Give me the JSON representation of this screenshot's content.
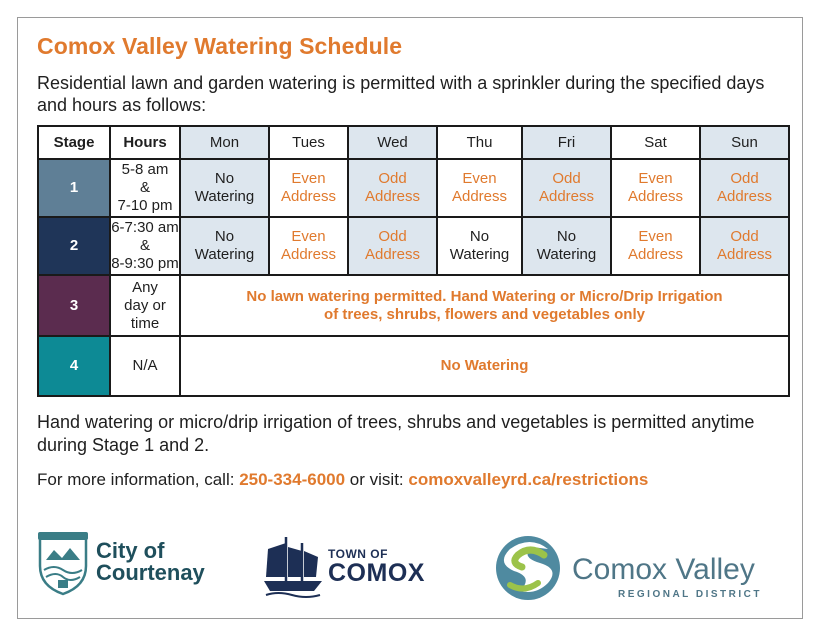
{
  "title": "Comox Valley Watering Schedule",
  "intro": "Residential lawn and garden watering is permitted with a sprinkler during the specified days and hours as follows:",
  "table": {
    "header": {
      "stage": "Stage",
      "hours": "Hours",
      "days": [
        "Mon",
        "Tues",
        "Wed",
        "Thu",
        "Fri",
        "Sat",
        "Sun"
      ]
    },
    "rows": [
      {
        "stage": "1",
        "hours": [
          "5-8 am",
          "&",
          "7-10 pm"
        ],
        "cells": [
          [
            "No",
            "Watering"
          ],
          [
            "Even",
            "Address"
          ],
          [
            "Odd",
            "Address"
          ],
          [
            "Even",
            "Address"
          ],
          [
            "Odd",
            "Address"
          ],
          [
            "Even",
            "Address"
          ],
          [
            "Odd",
            "Address"
          ]
        ]
      },
      {
        "stage": "2",
        "hours": [
          "6-7:30 am",
          "&",
          "8-9:30 pm"
        ],
        "cells": [
          [
            "No",
            "Watering"
          ],
          [
            "Even",
            "Address"
          ],
          [
            "Odd",
            "Address"
          ],
          [
            "No",
            "Watering"
          ],
          [
            "No",
            "Watering"
          ],
          [
            "Even",
            "Address"
          ],
          [
            "Odd",
            "Address"
          ]
        ]
      },
      {
        "stage": "3",
        "hours": [
          "Any",
          "day or",
          "time"
        ],
        "message": [
          "No lawn watering permitted. Hand Watering or Micro/Drip Irrigation",
          "of trees, shrubs, flowers and vegetables only"
        ]
      },
      {
        "stage": "4",
        "hours": [
          "N/A"
        ],
        "message": [
          "No Watering"
        ]
      }
    ]
  },
  "note": "Hand watering or micro/drip irrigation of trees, shrubs and vegetables is permitted anytime during Stage 1 and 2.",
  "info": {
    "prefix": "For more information, call:",
    "phone": "250-334-6000",
    "middle": "or visit:",
    "url": "comoxvalleyrd.ca/restrictions"
  },
  "logos": {
    "courtenay": [
      "City of",
      "Courtenay"
    ],
    "comox": [
      "TOWN OF",
      "COMOX"
    ],
    "cvrd": [
      "Comox Valley",
      "REGIONAL DISTRICT"
    ]
  },
  "colors": {
    "accent": "#e07a2e",
    "shade": "#dde6ee",
    "stage1": "#5f7f96",
    "stage2": "#1f3558",
    "stage3": "#5b2c4f",
    "stage4": "#0d8a95"
  }
}
